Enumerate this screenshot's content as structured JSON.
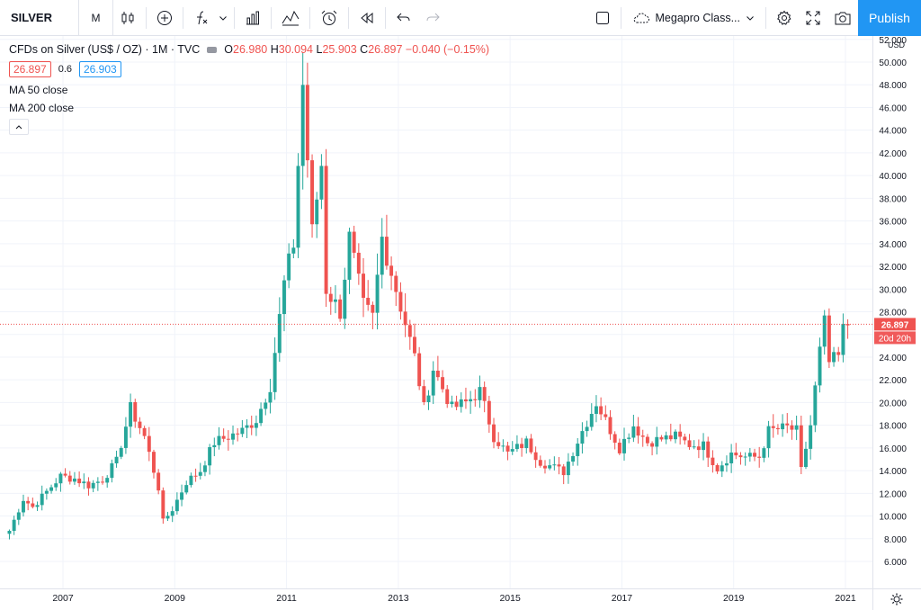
{
  "toolbar": {
    "symbol": "SILVER",
    "interval": "M",
    "layout_name": "Megapro Class...",
    "publish_label": "Publish"
  },
  "legend": {
    "title": "CFDs on Silver (US$ / OZ) · 1M · TVC",
    "o_label": "O",
    "o": "26.980",
    "h_label": "H",
    "h": "30.094",
    "l_label": "L",
    "l": "25.903",
    "c_label": "C",
    "c": "26.897",
    "change": "−0.040 (−0.15%)",
    "bid": "26.897",
    "spread": "0.6",
    "ask": "26.903",
    "indicators": [
      "MA 50 close",
      "MA 200 close"
    ]
  },
  "colors": {
    "up": "#26a69a",
    "down": "#ef5350",
    "accent": "#2196f3"
  },
  "chart_data": {
    "type": "candlestick",
    "interval": "monthly",
    "currency": "USD",
    "x_ticks": [
      "2007",
      "2009",
      "2011",
      "2013",
      "2015",
      "2017",
      "2019",
      "2021"
    ],
    "y_ticks": [
      "52.000",
      "50.000",
      "48.000",
      "46.000",
      "44.000",
      "42.000",
      "40.000",
      "38.000",
      "36.000",
      "34.000",
      "32.000",
      "30.000",
      "28.000",
      "26.000",
      "24.000",
      "22.000",
      "20.000",
      "18.000",
      "16.000",
      "14.000",
      "12.000",
      "10.000",
      "8.000",
      "6.000"
    ],
    "ylim": [
      5.3,
      52.3
    ],
    "last_price_label": "26.897",
    "countdown_label": "20d 20h",
    "anchors": [
      [
        "2006-01",
        8.7
      ],
      [
        "2006-04",
        11.5
      ],
      [
        "2006-06",
        10.8
      ],
      [
        "2006-12",
        13.5
      ],
      [
        "2007-03",
        13.3
      ],
      [
        "2007-06",
        12.7
      ],
      [
        "2007-09",
        13.2
      ],
      [
        "2007-12",
        14.8
      ],
      [
        "2008-03",
        19.5
      ],
      [
        "2008-06",
        17.0
      ],
      [
        "2008-09",
        12.5
      ],
      [
        "2008-10",
        9.5
      ],
      [
        "2008-12",
        10.6
      ],
      [
        "2009-03",
        13.0
      ],
      [
        "2009-06",
        14.0
      ],
      [
        "2009-09",
        16.5
      ],
      [
        "2009-12",
        17.0
      ],
      [
        "2010-03",
        17.5
      ],
      [
        "2010-06",
        18.5
      ],
      [
        "2010-09",
        21.5
      ],
      [
        "2010-12",
        30.5
      ],
      [
        "2011-02",
        34.0
      ],
      [
        "2011-04",
        48.0
      ],
      [
        "2011-06",
        35.0
      ],
      [
        "2011-08",
        41.0
      ],
      [
        "2011-09",
        30.0
      ],
      [
        "2011-12",
        28.0
      ],
      [
        "2012-02",
        34.5
      ],
      [
        "2012-05",
        28.5
      ],
      [
        "2012-07",
        27.5
      ],
      [
        "2012-09",
        34.5
      ],
      [
        "2012-12",
        30.0
      ],
      [
        "2013-04",
        24.0
      ],
      [
        "2013-06",
        19.5
      ],
      [
        "2013-08",
        23.0
      ],
      [
        "2013-12",
        19.5
      ],
      [
        "2014-03",
        20.0
      ],
      [
        "2014-06",
        21.0
      ],
      [
        "2014-09",
        17.0
      ],
      [
        "2014-12",
        15.5
      ],
      [
        "2015-04",
        16.5
      ],
      [
        "2015-07",
        14.8
      ],
      [
        "2015-12",
        13.9
      ],
      [
        "2016-04",
        17.5
      ],
      [
        "2016-07",
        20.0
      ],
      [
        "2016-12",
        16.0
      ],
      [
        "2017-03",
        18.0
      ],
      [
        "2017-06",
        16.5
      ],
      [
        "2017-09",
        16.8
      ],
      [
        "2017-12",
        17.0
      ],
      [
        "2018-03",
        16.3
      ],
      [
        "2018-06",
        16.2
      ],
      [
        "2018-09",
        14.2
      ],
      [
        "2018-12",
        15.5
      ],
      [
        "2019-03",
        15.2
      ],
      [
        "2019-06",
        15.2
      ],
      [
        "2019-08",
        17.5
      ],
      [
        "2019-12",
        17.8
      ],
      [
        "2020-02",
        17.5
      ],
      [
        "2020-03",
        14.0
      ],
      [
        "2020-05",
        18.0
      ],
      [
        "2020-07",
        24.5
      ],
      [
        "2020-08",
        27.0
      ],
      [
        "2020-09",
        23.5
      ],
      [
        "2020-11",
        24.0
      ],
      [
        "2020-12",
        26.4
      ],
      [
        "2021-01",
        26.9
      ]
    ]
  }
}
